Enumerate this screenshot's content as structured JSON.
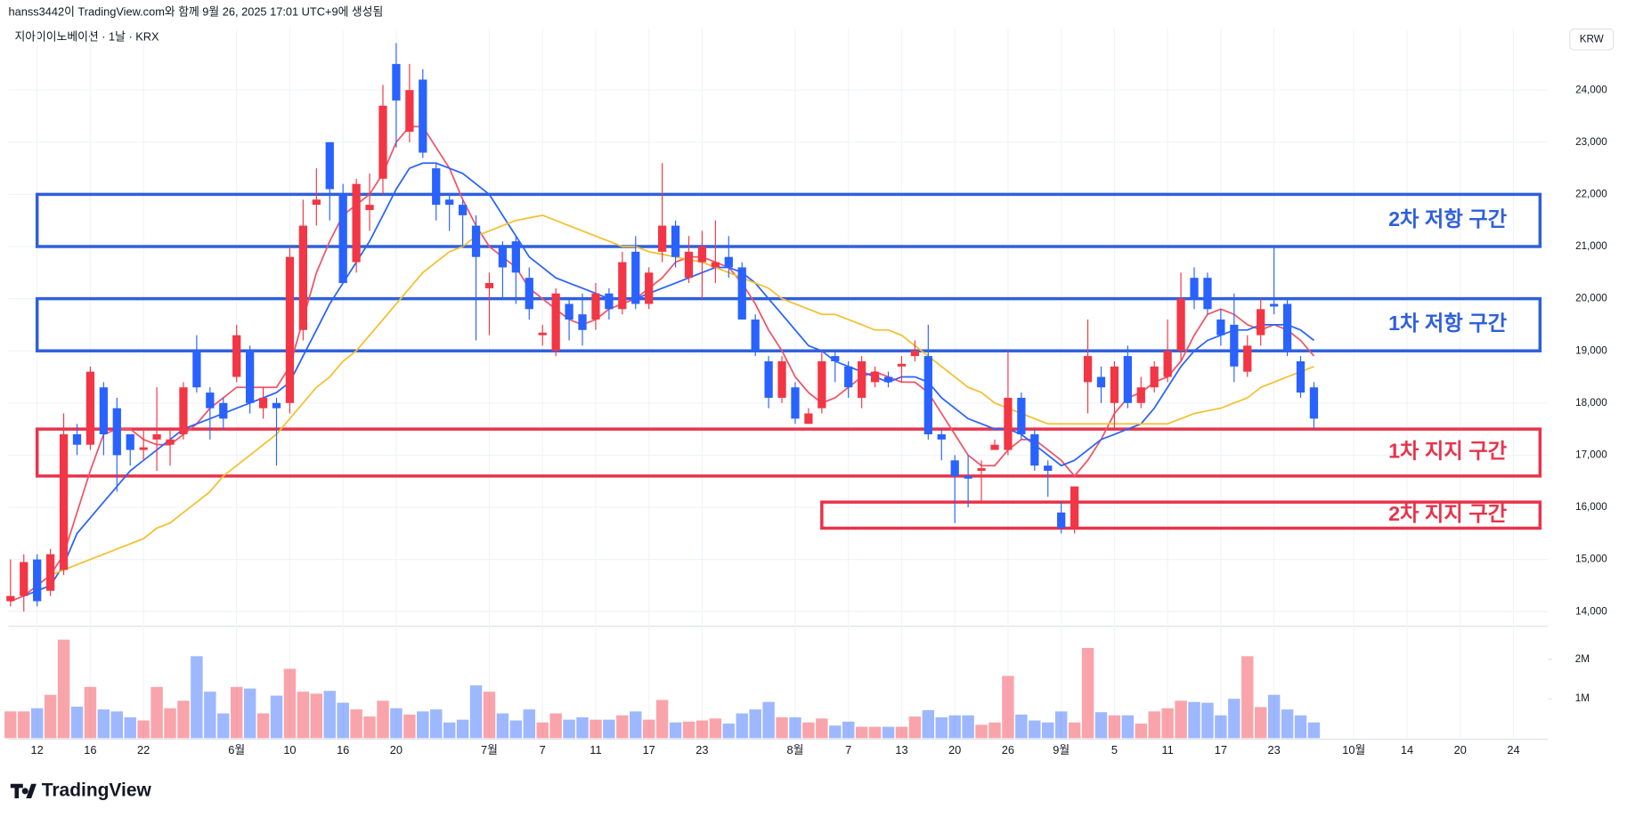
{
  "header": {
    "credit": "hanss3442이 TradingView.com와 함께 9월 26, 2025 17:01 UTC+9에 생성됨",
    "logo": "TradingView"
  },
  "chart_data": {
    "type": "candlestick",
    "title": "지아이이노베이션 · 1날 · KRX",
    "y_axis_label": "KRW",
    "up_color": "#f23645",
    "down_color": "#2962ff",
    "categories": [
      null,
      null,
      "12",
      null,
      null,
      null,
      "16",
      null,
      null,
      null,
      "22",
      null,
      null,
      null,
      null,
      null,
      null,
      "6월",
      null,
      null,
      null,
      "10",
      null,
      null,
      null,
      "16",
      null,
      null,
      null,
      "20",
      null,
      null,
      null,
      null,
      null,
      null,
      "7월",
      null,
      null,
      null,
      "7",
      null,
      null,
      null,
      "11",
      null,
      null,
      null,
      "17",
      null,
      null,
      null,
      "23",
      null,
      null,
      null,
      null,
      null,
      null,
      "8월",
      null,
      null,
      null,
      "7",
      null,
      null,
      null,
      "13",
      null,
      null,
      null,
      "20",
      null,
      null,
      null,
      "26",
      null,
      null,
      null,
      "9월",
      null,
      null,
      null,
      "5",
      null,
      null,
      null,
      "11",
      null,
      null,
      null,
      "17",
      null,
      null,
      null,
      "23",
      null,
      null,
      null,
      null,
      null,
      "10월",
      null,
      null,
      null,
      "14",
      null,
      null,
      null,
      "20",
      null,
      null,
      null,
      "24",
      null,
      null
    ],
    "open": [
      14200,
      14300,
      15000,
      14400,
      14800,
      17400,
      17200,
      18300,
      17900,
      17400,
      17100,
      17300,
      17200,
      17400,
      19000,
      18200,
      18000,
      18500,
      19000,
      17900,
      18000,
      18000,
      19400,
      21800,
      23000,
      22000,
      20700,
      21700,
      22300,
      24500,
      23200,
      24200,
      22500,
      21900,
      21800,
      21400,
      20200,
      21000,
      21100,
      20400,
      19300,
      19000,
      19900,
      19700,
      19600,
      20100,
      19800,
      20900,
      19900,
      20900,
      21400,
      20400,
      20700,
      20600,
      20800,
      20600,
      19600,
      18800,
      18100,
      18300,
      17600,
      17900,
      18900,
      18700,
      18100,
      18400,
      18500,
      18700,
      18900,
      18900,
      17400,
      16900,
      16600,
      16700,
      17100,
      17100,
      18100,
      17400,
      16800,
      15900,
      15600,
      18400,
      18500,
      18000,
      18900,
      18000,
      18300,
      18500,
      19000,
      20400,
      20400,
      19600,
      19500,
      18600,
      19300,
      19900,
      19900,
      18800,
      18300,
      null,
      null,
      null,
      null,
      null,
      null,
      null,
      null,
      null,
      null,
      null,
      null,
      null,
      null,
      null,
      null,
      null
    ],
    "high": [
      15000,
      15100,
      15100,
      15200,
      17800,
      17600,
      18700,
      18400,
      18100,
      17400,
      17500,
      18300,
      17500,
      18400,
      19300,
      18300,
      18100,
      19500,
      19100,
      18300,
      18100,
      21000,
      21900,
      22500,
      23000,
      22200,
      22300,
      22400,
      24100,
      24900,
      24500,
      24400,
      22600,
      22000,
      21900,
      21600,
      20500,
      21100,
      21200,
      20600,
      19500,
      20200,
      20000,
      20100,
      20300,
      20200,
      20900,
      21200,
      20600,
      22600,
      21500,
      21200,
      21300,
      21500,
      21200,
      20700,
      19700,
      18900,
      18900,
      18400,
      17900,
      19000,
      19000,
      18800,
      18900,
      18700,
      18600,
      18900,
      19200,
      19500,
      17500,
      17000,
      17000,
      16900,
      17300,
      19000,
      18200,
      17500,
      16900,
      16100,
      16400,
      19600,
      18700,
      18800,
      19100,
      18500,
      18800,
      19600,
      20500,
      20600,
      20500,
      19800,
      20100,
      19300,
      20000,
      21000,
      20000,
      18900,
      18400,
      null,
      null,
      null,
      null,
      null,
      null,
      null,
      null,
      null,
      null,
      null,
      null,
      null,
      null,
      null,
      null,
      null
    ],
    "low": [
      14100,
      14000,
      14100,
      14300,
      14700,
      17000,
      17100,
      17000,
      16300,
      16800,
      16900,
      16700,
      16800,
      17300,
      18200,
      17300,
      17500,
      18400,
      17800,
      17700,
      16800,
      17800,
      19200,
      21400,
      21500,
      20300,
      20500,
      21300,
      22000,
      22900,
      23000,
      22700,
      21500,
      21300,
      21000,
      19200,
      19300,
      20000,
      19900,
      19600,
      19100,
      18900,
      19200,
      19100,
      19400,
      19600,
      19700,
      19800,
      19800,
      20700,
      20600,
      20300,
      20000,
      20300,
      20400,
      19600,
      18900,
      17900,
      18000,
      17600,
      17600,
      17800,
      18400,
      18100,
      17900,
      18300,
      18300,
      18400,
      18800,
      17300,
      16900,
      15700,
      16000,
      16100,
      17100,
      17000,
      17300,
      16700,
      16200,
      15500,
      15500,
      17800,
      18000,
      17500,
      17900,
      17900,
      18200,
      18400,
      18800,
      19800,
      19700,
      19100,
      18400,
      18500,
      19100,
      19700,
      18900,
      18100,
      17500,
      null,
      null,
      null,
      null,
      null,
      null,
      null,
      null,
      null,
      null,
      null,
      null,
      null,
      null,
      null,
      null,
      null
    ],
    "close": [
      14300,
      14950,
      14200,
      15100,
      17400,
      17200,
      18600,
      17400,
      17000,
      17100,
      17150,
      17400,
      17300,
      18300,
      18300,
      17900,
      17700,
      19300,
      18000,
      18100,
      17900,
      20800,
      21400,
      21900,
      22100,
      20300,
      22200,
      21800,
      23700,
      23800,
      24000,
      22800,
      21800,
      21800,
      21600,
      20800,
      20300,
      20600,
      20500,
      19800,
      19350,
      20100,
      19600,
      19400,
      20100,
      19800,
      20700,
      19900,
      20500,
      21400,
      20800,
      20900,
      21000,
      20700,
      20600,
      19600,
      19000,
      18100,
      18800,
      17700,
      17800,
      18800,
      18800,
      18300,
      18800,
      18600,
      18400,
      18750,
      19000,
      17400,
      17300,
      16600,
      16550,
      16750,
      17200,
      18100,
      17400,
      16800,
      16700,
      15600,
      16400,
      18900,
      18300,
      18700,
      18000,
      18300,
      18700,
      19000,
      20000,
      20000,
      19800,
      19300,
      18700,
      19100,
      19800,
      19850,
      19000,
      18200,
      17700,
      null,
      null,
      null,
      null,
      null,
      null,
      null,
      null,
      null,
      null,
      null,
      null,
      null,
      null,
      null,
      null,
      null
    ],
    "volume": [
      680000,
      680000,
      760000,
      1100000,
      2500000,
      800000,
      1300000,
      730000,
      680000,
      530000,
      450000,
      1300000,
      760000,
      950000,
      2080000,
      1180000,
      630000,
      1300000,
      1260000,
      630000,
      1080000,
      1760000,
      1180000,
      1130000,
      1200000,
      900000,
      730000,
      550000,
      950000,
      760000,
      600000,
      680000,
      730000,
      400000,
      470000,
      1340000,
      1180000,
      630000,
      450000,
      730000,
      400000,
      630000,
      470000,
      530000,
      470000,
      470000,
      580000,
      680000,
      470000,
      970000,
      400000,
      420000,
      450000,
      500000,
      370000,
      630000,
      730000,
      920000,
      530000,
      530000,
      400000,
      500000,
      320000,
      420000,
      290000,
      290000,
      290000,
      290000,
      550000,
      710000,
      530000,
      580000,
      580000,
      340000,
      400000,
      1580000,
      600000,
      450000,
      400000,
      680000,
      400000,
      2290000,
      660000,
      580000,
      580000,
      370000,
      680000,
      760000,
      950000,
      920000,
      900000,
      580000,
      1000000,
      2080000,
      790000,
      1100000,
      730000,
      580000,
      400000,
      null,
      null,
      null,
      null,
      null,
      null,
      null,
      null,
      null,
      null,
      null,
      null,
      null,
      null,
      null,
      null,
      null
    ],
    "lines": [
      {
        "color": "#f05466",
        "values": [
          14200,
          14300,
          14500,
          14700,
          15100,
          15900,
          16700,
          17400,
          17500,
          17500,
          17300,
          17200,
          17200,
          17400,
          17600,
          17900,
          18100,
          18300,
          18300,
          18300,
          18300,
          18700,
          19600,
          20500,
          21100,
          21600,
          21800,
          22000,
          22400,
          23000,
          23300,
          23300,
          22900,
          22500,
          21900,
          21400,
          21000,
          20800,
          20600,
          20200,
          20000,
          19800,
          19600,
          19500,
          19600,
          19800,
          19900,
          20000,
          20200,
          20400,
          20700,
          20800,
          20800,
          20700,
          20600,
          20300,
          19900,
          19400,
          19000,
          18500,
          18200,
          18000,
          18100,
          18300,
          18500,
          18600,
          18500,
          18400,
          18400,
          18200,
          17800,
          17400,
          17000,
          16800,
          16800,
          17100,
          17300,
          17300,
          17100,
          16900,
          16600,
          16900,
          17300,
          17800,
          18100,
          18200,
          18400,
          18500,
          18800,
          19300,
          19700,
          19800,
          19700,
          19500,
          19400,
          19500,
          19400,
          19200,
          18900,
          null,
          null,
          null,
          null,
          null,
          null,
          null,
          null,
          null,
          null,
          null,
          null,
          null,
          null,
          null,
          null,
          null
        ]
      },
      {
        "color": "#2962ff",
        "values": [
          null,
          14300,
          14400,
          14500,
          14900,
          15500,
          15800,
          16100,
          16400,
          16700,
          16900,
          17100,
          17300,
          17500,
          17600,
          17700,
          17800,
          17900,
          18000,
          18100,
          18200,
          18400,
          18900,
          19400,
          19900,
          20300,
          20700,
          21100,
          21600,
          22100,
          22500,
          22600,
          22600,
          22500,
          22400,
          22200,
          22000,
          21600,
          21200,
          20800,
          20600,
          20400,
          20300,
          20200,
          20100,
          20000,
          20000,
          20000,
          20100,
          20200,
          20300,
          20400,
          20500,
          20600,
          20600,
          20500,
          20300,
          20000,
          19700,
          19400,
          19100,
          19000,
          18800,
          18700,
          18600,
          18500,
          18400,
          18500,
          18500,
          18400,
          18100,
          17900,
          17700,
          17600,
          17500,
          17500,
          17400,
          17200,
          17000,
          16800,
          16900,
          17100,
          17300,
          17400,
          17500,
          17600,
          17900,
          18300,
          18700,
          19000,
          19200,
          19300,
          19400,
          19400,
          19500,
          19500,
          19500,
          19400,
          19200,
          null,
          null,
          null,
          null,
          null,
          null,
          null,
          null,
          null,
          null,
          null,
          null,
          null,
          null,
          null,
          null,
          null
        ]
      },
      {
        "color": "#f4c02e",
        "values": [
          null,
          null,
          null,
          14700,
          14800,
          14900,
          15000,
          15100,
          15200,
          15300,
          15400,
          15600,
          15700,
          15900,
          16100,
          16300,
          16600,
          16800,
          17000,
          17200,
          17400,
          17700,
          18000,
          18300,
          18500,
          18800,
          19000,
          19300,
          19600,
          19900,
          20200,
          20500,
          20700,
          20900,
          21000,
          21200,
          21300,
          21400,
          21500,
          21550,
          21600,
          21500,
          21400,
          21300,
          21200,
          21100,
          21000,
          21000,
          20900,
          20850,
          20800,
          20750,
          20700,
          20600,
          20500,
          20400,
          20300,
          20200,
          20000,
          19900,
          19800,
          19700,
          19700,
          19600,
          19500,
          19400,
          19400,
          19300,
          19100,
          18900,
          18700,
          18500,
          18300,
          18200,
          18000,
          17900,
          17800,
          17700,
          17600,
          17600,
          17600,
          17600,
          17600,
          17600,
          17600,
          17600,
          17600,
          17600,
          17700,
          17800,
          17850,
          17900,
          18000,
          18100,
          18300,
          18400,
          18500,
          18600,
          18700,
          null,
          null,
          null,
          null,
          null,
          null,
          null,
          null,
          null,
          null,
          null,
          null,
          null,
          null,
          null,
          null,
          null
        ]
      }
    ],
    "zones": [
      {
        "label": "2차 저항 구간",
        "low": 21000,
        "high": 22000,
        "start": 2,
        "color": "#2f5fdc"
      },
      {
        "label": "1차 저항 구간",
        "low": 19000,
        "high": 20000,
        "start": 2,
        "color": "#2f5fdc"
      },
      {
        "label": "1차 지지 구간",
        "low": 16600,
        "high": 17500,
        "start": 2,
        "color": "#e8334a"
      },
      {
        "label": "2차 지지 구간",
        "low": 15600,
        "high": 16100,
        "start": 61,
        "color": "#e8334a"
      }
    ],
    "ylim": [
      13720,
      25170
    ],
    "yticks": [
      {
        "value": 14000,
        "label": "14,000"
      },
      {
        "value": 15000,
        "label": "15,000"
      },
      {
        "value": 16000,
        "label": "16,000"
      },
      {
        "value": 17000,
        "label": "17,000"
      },
      {
        "value": 18000,
        "label": "18,000"
      },
      {
        "value": 19000,
        "label": "19,000"
      },
      {
        "value": 20000,
        "label": "20,000"
      },
      {
        "value": 21000,
        "label": "21,000"
      },
      {
        "value": 22000,
        "label": "22,000"
      },
      {
        "value": 23000,
        "label": "23,000"
      },
      {
        "value": 24000,
        "label": "24,000"
      }
    ],
    "volume_lim": [
      0,
      2840000
    ],
    "volume_ticks": [
      {
        "value": 1000000,
        "label": "1M"
      },
      {
        "value": 2000000,
        "label": "2M"
      }
    ],
    "grid": true
  }
}
